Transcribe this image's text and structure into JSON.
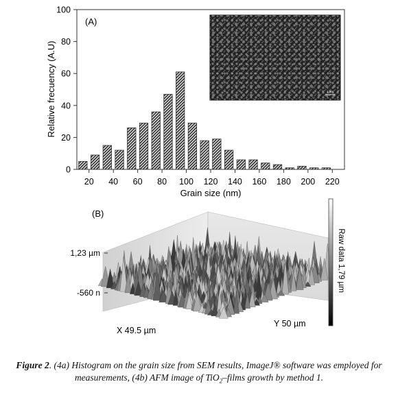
{
  "chart_data": {
    "type": "bar",
    "panel_label": "(A)",
    "xlabel": "Grain size (nm)",
    "ylabel": "Relative frecuency (A.U)",
    "ylim": [
      0,
      100
    ],
    "yticks": [
      0,
      20,
      40,
      60,
      80,
      100
    ],
    "xticks": [
      "20",
      "40",
      "60",
      "80",
      "100",
      "120",
      "140",
      "160",
      "180",
      "200",
      "220"
    ],
    "categories": [
      15,
      25,
      35,
      45,
      55,
      65,
      75,
      85,
      95,
      105,
      115,
      125,
      135,
      145,
      155,
      165,
      175,
      185,
      195,
      205,
      215
    ],
    "values": [
      5,
      9,
      15,
      12,
      26,
      29,
      36,
      47,
      61,
      29,
      18,
      19,
      12,
      6,
      6,
      4,
      3,
      1,
      2,
      1,
      1
    ],
    "bar_pattern": "diagonal-hatch",
    "grid": false,
    "inset": {
      "description": "SEM micrograph",
      "scale_label": "1 µm"
    }
  },
  "afm": {
    "panel_label": "(B)",
    "z_max_label": "1,23 µm",
    "z_min_label": "-560 n",
    "x_label": "X 49.5 µm",
    "y_label": "Y 50 µm",
    "colorbar_label": "Raw data 1,79 µm"
  },
  "caption": {
    "figure_label": "Figure 2",
    "text_1": ". (4a) Histogram on the grain size from SEM results, ImageJ® software was employed for measurements, (4b) AFM image of TiO",
    "sub": "2",
    "text_2": "–films growth by method 1."
  }
}
